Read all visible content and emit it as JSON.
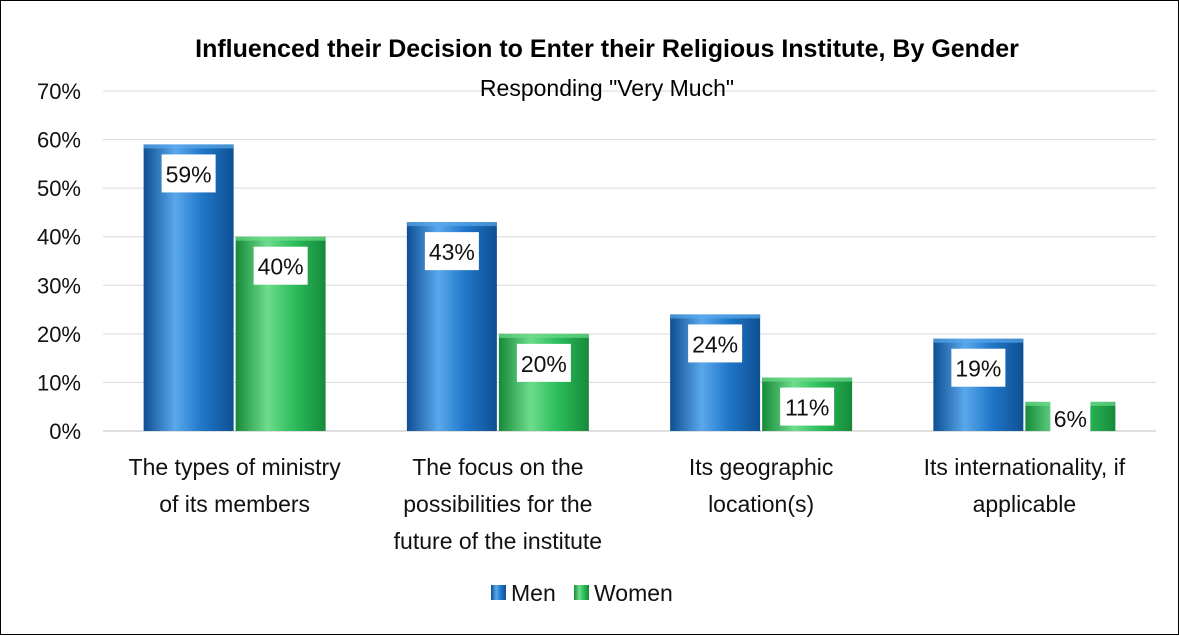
{
  "chart_data": {
    "type": "bar",
    "title": "Influenced their Decision to Enter their Religious Institute, By Gender",
    "subtitle": "Responding \"Very Much\"",
    "categories": [
      [
        "The types of ministry",
        "of its members"
      ],
      [
        "The focus on the",
        "possibilities for the",
        "future of the institute"
      ],
      [
        "Its geographic",
        "location(s)"
      ],
      [
        "Its internationality, if",
        "applicable"
      ]
    ],
    "series": [
      {
        "name": "Men",
        "values": [
          59,
          43,
          24,
          19
        ],
        "labels": [
          "59%",
          "43%",
          "24%",
          "19%"
        ],
        "color": "#1f77c8",
        "color_dark": "#0f4f93",
        "color_light": "#5aa8ec"
      },
      {
        "name": "Women",
        "values": [
          40,
          20,
          11,
          6
        ],
        "labels": [
          "40%",
          "20%",
          "11%",
          "6%"
        ],
        "color": "#2cbd5a",
        "color_dark": "#168a3a",
        "color_light": "#6ddc8c"
      }
    ],
    "ylim": [
      0,
      70
    ],
    "yticks": [
      0,
      10,
      20,
      30,
      40,
      50,
      60,
      70
    ],
    "ytick_labels": [
      "0%",
      "10%",
      "20%",
      "30%",
      "40%",
      "50%",
      "60%",
      "70%"
    ],
    "grid": true,
    "legend_position": "bottom"
  }
}
